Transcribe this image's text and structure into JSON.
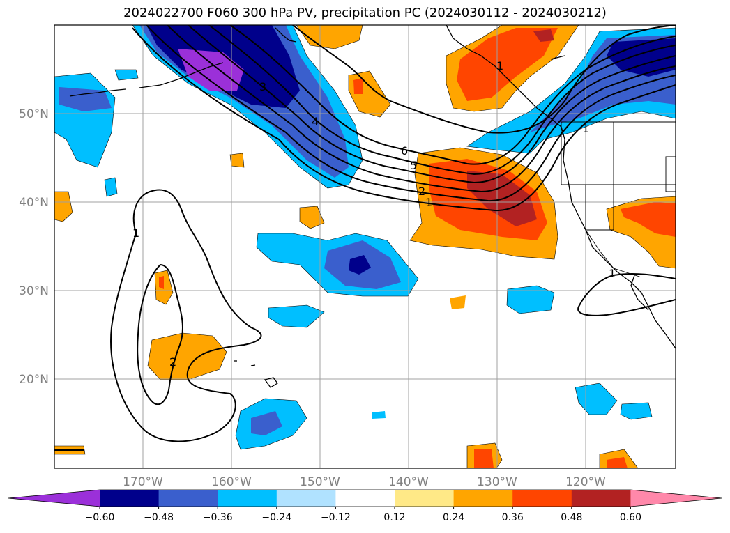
{
  "title": "2024022700 F060 300 hPa PV, precipitation PC (2024030112 - 2024030212)",
  "lat_labels": [
    "50°N",
    "40°N",
    "30°N",
    "20°N"
  ],
  "lon_labels": [
    "170°W",
    "160°W",
    "150°W",
    "140°W",
    "130°W",
    "120°W"
  ],
  "colorbar": {
    "ticks": [
      "−0.60",
      "−0.48",
      "−0.36",
      "−0.24",
      "−0.12",
      "0.12",
      "0.24",
      "0.36",
      "0.48",
      "0.60"
    ],
    "colors": [
      "#9b30d9",
      "#00008b",
      "#3a5fcd",
      "#00bfff",
      "#b0e2ff",
      "#ffffff",
      "#ffe987",
      "#ffa500",
      "#ff4500",
      "#b22222",
      "#ff88aa"
    ]
  },
  "contour_labels": [
    "6",
    "5",
    "4",
    "3",
    "2",
    "1",
    "1",
    "1",
    "2",
    "1",
    "1"
  ]
}
